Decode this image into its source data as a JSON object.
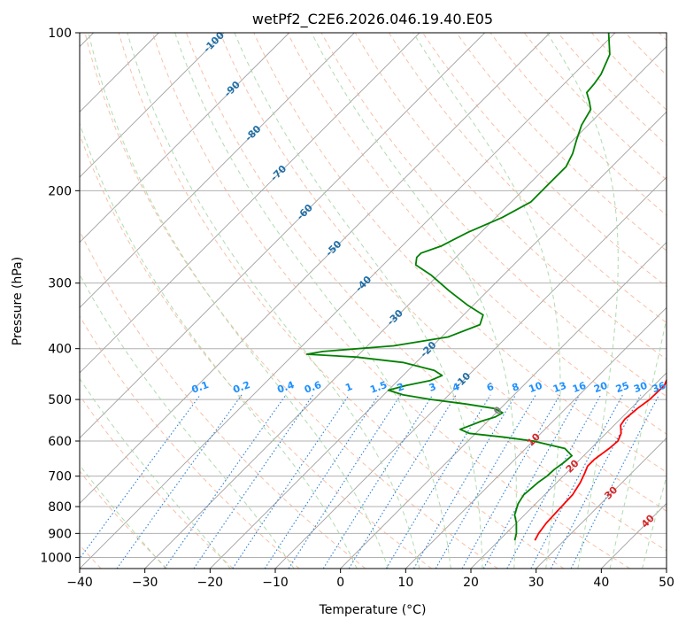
{
  "chart_data": {
    "type": "line",
    "chart_kind": "skew-T log-P diagram",
    "title": "wetPf2_C2E6.2026.046.19.40.E05",
    "xlabel": "Temperature (°C)",
    "ylabel": "Pressure (hPa)",
    "xlim": [
      -40,
      50
    ],
    "ylim": [
      1050,
      100
    ],
    "x_ticks": [
      -40,
      -30,
      -20,
      -10,
      0,
      10,
      20,
      30,
      40,
      50
    ],
    "x_tick_labels": [
      "−40",
      "−30",
      "−20",
      "−10",
      "0",
      "10",
      "20",
      "30",
      "40",
      "50"
    ],
    "y_ticks": [
      100,
      200,
      300,
      400,
      500,
      600,
      700,
      800,
      900,
      1000
    ],
    "y_tick_labels": [
      "100",
      "200",
      "300",
      "400",
      "500",
      "600",
      "700",
      "800",
      "900",
      "1000"
    ],
    "grid": true,
    "colors": {
      "temperature": "#ff0000",
      "dewpoint": "#008000",
      "isotherm": "#999999",
      "dry_adiabat": "#f4a582",
      "moist_adiabat": "#a6d7a6",
      "mixing_ratio": "#2b7fd6",
      "mixing_label": "#1e90ff",
      "isotherm_label": "#1f6fa8",
      "hot_label": "#d62728",
      "zero_label": "#808080"
    },
    "series": [
      {
        "name": "Temperature",
        "color": "#ff0000",
        "points": [
          [
            928,
            25.5
          ],
          [
            900,
            25.0
          ],
          [
            860,
            24.6
          ],
          [
            800,
            24.4
          ],
          [
            760,
            24.3
          ],
          [
            720,
            23.6
          ],
          [
            690,
            22.8
          ],
          [
            670,
            22.2
          ],
          [
            650,
            22.2
          ],
          [
            620,
            22.8
          ],
          [
            600,
            23.0
          ],
          [
            580,
            22.3
          ],
          [
            560,
            21.0
          ],
          [
            545,
            20.7
          ],
          [
            520,
            21.0
          ],
          [
            500,
            21.5
          ],
          [
            470,
            21.6
          ],
          [
            450,
            20.7
          ],
          [
            420,
            19.6
          ],
          [
            400,
            18.5
          ],
          [
            385,
            16.5
          ],
          [
            370,
            14.2
          ],
          [
            350,
            12.5
          ],
          [
            320,
            10.9
          ],
          [
            300,
            10.0
          ],
          [
            260,
            6.5
          ],
          [
            220,
            2.3
          ],
          [
            200,
            -0.5
          ],
          [
            175,
            -5.0
          ],
          [
            160,
            -8.3
          ],
          [
            150,
            -11.0
          ],
          [
            135,
            -15.5
          ],
          [
            120,
            -20.2
          ],
          [
            110,
            -23.0
          ],
          [
            100,
            -26.4
          ]
        ]
      },
      {
        "name": "Dew point",
        "color": "#008000",
        "points": [
          [
            928,
            22.4
          ],
          [
            900,
            21.6
          ],
          [
            860,
            20.0
          ],
          [
            830,
            18.5
          ],
          [
            790,
            17.3
          ],
          [
            760,
            16.8
          ],
          [
            720,
            17.1
          ],
          [
            700,
            17.5
          ],
          [
            680,
            17.6
          ],
          [
            660,
            18.0
          ],
          [
            640,
            18.2
          ],
          [
            620,
            16.0
          ],
          [
            600,
            10.0
          ],
          [
            590,
            5.0
          ],
          [
            580,
            -1.0
          ],
          [
            570,
            -3.0
          ],
          [
            560,
            -2.0
          ],
          [
            550,
            -1.0
          ],
          [
            540,
            0.5
          ],
          [
            530,
            1.0
          ],
          [
            520,
            -1.0
          ],
          [
            510,
            -6.0
          ],
          [
            500,
            -12.0
          ],
          [
            490,
            -17.0
          ],
          [
            480,
            -20.0
          ],
          [
            470,
            -18.0
          ],
          [
            460,
            -15.0
          ],
          [
            450,
            -14.0
          ],
          [
            440,
            -16.0
          ],
          [
            425,
            -22.0
          ],
          [
            415,
            -30.0
          ],
          [
            410,
            -38.0
          ],
          [
            405,
            -36.0
          ],
          [
            395,
            -26.0
          ],
          [
            380,
            -19.0
          ],
          [
            360,
            -16.0
          ],
          [
            345,
            -17.0
          ],
          [
            330,
            -21.0
          ],
          [
            310,
            -26.0
          ],
          [
            290,
            -31.0
          ],
          [
            277,
            -35.0
          ],
          [
            268,
            -36.0
          ],
          [
            263,
            -36.0
          ],
          [
            255,
            -34.0
          ],
          [
            240,
            -32.0
          ],
          [
            225,
            -29.0
          ],
          [
            210,
            -27.0
          ],
          [
            195,
            -27.0
          ],
          [
            180,
            -27.0
          ],
          [
            170,
            -28.0
          ],
          [
            160,
            -29.5
          ],
          [
            150,
            -31.0
          ],
          [
            140,
            -32.0
          ],
          [
            135,
            -33.5
          ],
          [
            130,
            -35.2
          ],
          [
            125,
            -35.4
          ],
          [
            120,
            -35.8
          ],
          [
            110,
            -37.5
          ],
          [
            100,
            -41.0
          ]
        ]
      }
    ],
    "isotherm_labels": {
      "values": [
        -100,
        -90,
        -80,
        -70,
        -60,
        -50,
        -40,
        -30,
        -20,
        -10,
        0,
        10,
        20,
        30,
        40
      ],
      "texts": [
        "-100",
        "-90",
        "-80",
        "-70",
        "-60",
        "-50",
        "-40",
        "-30",
        "-20",
        "-10",
        "0",
        "10",
        "20",
        "30",
        "40"
      ]
    },
    "mixing_ratio_labels": {
      "values": [
        0.1,
        0.2,
        0.4,
        0.6,
        1,
        1.5,
        2,
        3,
        4,
        6,
        8,
        10,
        13,
        16,
        20,
        25,
        30,
        36
      ],
      "texts": [
        "0.1",
        "0.2",
        "0.4",
        "0.6",
        "1",
        "1.5",
        "2",
        "3",
        "4",
        "6",
        "8",
        "10",
        "13",
        "16",
        "20",
        "25",
        "30",
        "36"
      ]
    },
    "dry_adiabats_theta_c": [
      -40,
      -30,
      -20,
      -10,
      0,
      10,
      20,
      30,
      40,
      50,
      60,
      70,
      80,
      90,
      100,
      110,
      120,
      130,
      140,
      150,
      160,
      170,
      180,
      190,
      200
    ],
    "moist_adiabats_thetaw_c": [
      -30,
      -20,
      -10,
      0,
      5,
      10,
      15,
      20,
      25,
      30,
      35,
      40,
      45
    ],
    "isotherm_values_c": [
      -120,
      -110,
      -100,
      -90,
      -80,
      -70,
      -60,
      -50,
      -40,
      -30,
      -20,
      -10,
      0,
      10,
      20,
      30,
      40,
      50
    ]
  }
}
